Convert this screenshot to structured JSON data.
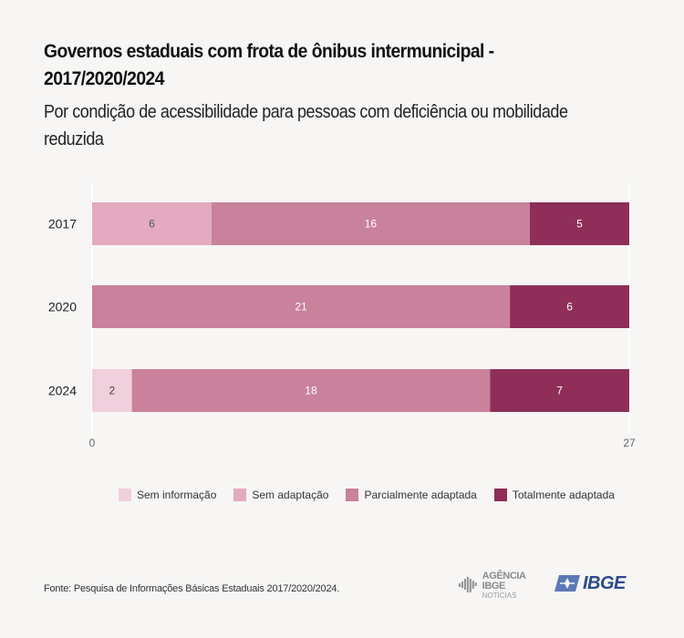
{
  "header": {
    "title": "Governos estaduais com frota de ônibus intermunicipal  - 2017/2020/2024",
    "subtitle": "Por condição de acessibilidade para pessoas com deficiência ou mobilidade reduzida"
  },
  "chart_data": {
    "type": "bar",
    "orientation": "horizontal",
    "stacked": true,
    "title": "Governos estaduais com frota de ônibus intermunicipal  - 2017/2020/2024",
    "subtitle": "Por condição de acessibilidade para pessoas com deficiência ou mobilidade reduzida",
    "categories": [
      "2017",
      "2020",
      "2024"
    ],
    "series": [
      {
        "name": "Sem informação",
        "color": "#f0d0dc",
        "label_color": "#444444",
        "values": [
          0,
          0,
          2
        ]
      },
      {
        "name": "Sem adaptação",
        "color": "#e3aac0",
        "label_color": "#555555",
        "values": [
          6,
          0,
          0
        ]
      },
      {
        "name": "Parcialmente adaptada",
        "color": "#c9819c",
        "label_color": "#ffffff",
        "values": [
          16,
          21,
          18
        ]
      },
      {
        "name": "Totalmente adaptada",
        "color": "#8e2e59",
        "label_color": "#ffffff",
        "values": [
          5,
          6,
          7
        ]
      }
    ],
    "xlim": [
      0,
      27
    ],
    "xticks": [
      "0",
      "27"
    ],
    "xlabel": "",
    "ylabel": "",
    "grid": true,
    "legend_position": "bottom"
  },
  "legend": {
    "items": [
      {
        "label": "Sem informação",
        "color": "#f0d0dc"
      },
      {
        "label": "Sem adaptação",
        "color": "#e3aac0"
      },
      {
        "label": "Parcialmente adaptada",
        "color": "#c9819c"
      },
      {
        "label": "Totalmente adaptada",
        "color": "#8e2e59"
      }
    ]
  },
  "footer": {
    "source": "Fonte: Pesquisa de Informações Básicas Estaduais 2017/2020/2024.",
    "logo_agencia_top": "AGÊNCIA IBGE",
    "logo_agencia_bottom": "NOTÍCIAS",
    "logo_ibge": "IBGE"
  }
}
